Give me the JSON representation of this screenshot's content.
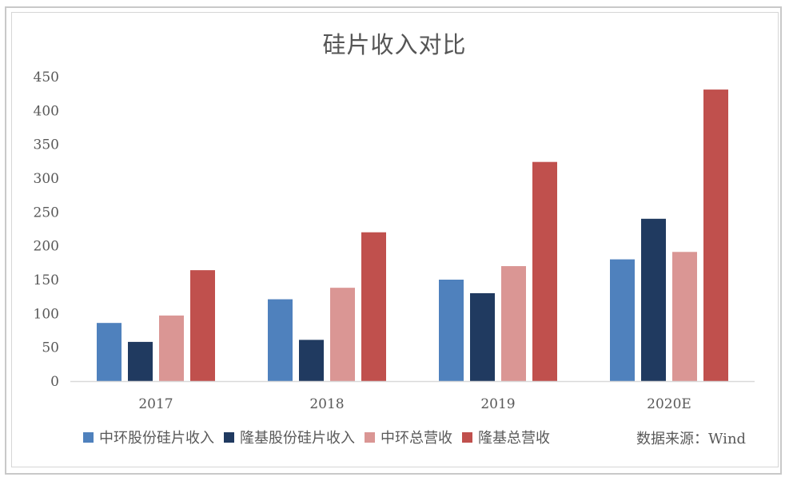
{
  "chart_data": {
    "type": "bar",
    "title": "硅片收入对比",
    "categories": [
      "2017",
      "2018",
      "2019",
      "2020E"
    ],
    "ylim": [
      0,
      450
    ],
    "yticks": [
      "0",
      "50",
      "100",
      "150",
      "200",
      "250",
      "300",
      "350",
      "400",
      "450"
    ],
    "grid": false,
    "legend_position": "bottom",
    "series": [
      {
        "name": "中环股份硅片收入",
        "color": "#4f81bd",
        "values": [
          86,
          121,
          150,
          180
        ]
      },
      {
        "name": "隆基股份硅片收入",
        "color": "#203a60",
        "values": [
          58,
          61,
          130,
          240
        ]
      },
      {
        "name": "中环总营收",
        "color": "#da9694",
        "values": [
          97,
          138,
          170,
          191
        ]
      },
      {
        "name": "隆基总营收",
        "color": "#c0504d",
        "values": [
          164,
          220,
          324,
          431
        ]
      }
    ],
    "source": "数据来源：Wind"
  }
}
